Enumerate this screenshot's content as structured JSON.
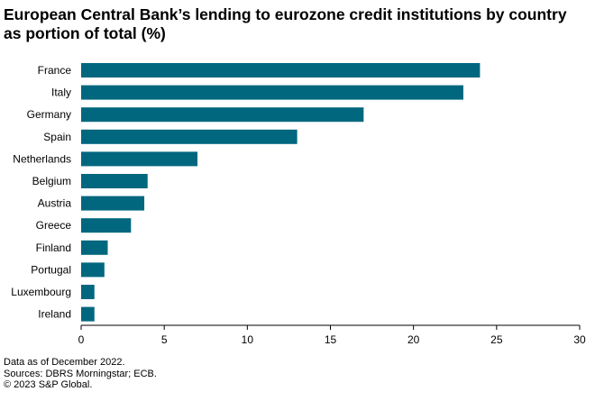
{
  "title_lines": [
    "European Central Bank’s lending to eurozone credit institutions by country",
    "as portion of total (%)"
  ],
  "footer": {
    "note": "Data as of December 2022.",
    "sources": "Sources: DBRS Morningstar; ECB.",
    "copyright": "© 2023 S&P Global."
  },
  "colors": {
    "bar": "#00677F",
    "axis": "#000000"
  },
  "chart_data": {
    "type": "bar",
    "orientation": "horizontal",
    "title": "European Central Bank’s lending to eurozone credit institutions by country as portion of total (%)",
    "categories": [
      "France",
      "Italy",
      "Germany",
      "Spain",
      "Netherlands",
      "Belgium",
      "Austria",
      "Greece",
      "Finland",
      "Portugal",
      "Luxembourg",
      "Ireland"
    ],
    "values": [
      24.0,
      23.0,
      17.0,
      13.0,
      7.0,
      4.0,
      3.8,
      3.0,
      1.6,
      1.4,
      0.8,
      0.8
    ],
    "xlim": [
      0,
      30
    ],
    "xticks": [
      0,
      5,
      10,
      15,
      20,
      25,
      30
    ],
    "grid": false,
    "xlabel": "",
    "ylabel": ""
  }
}
